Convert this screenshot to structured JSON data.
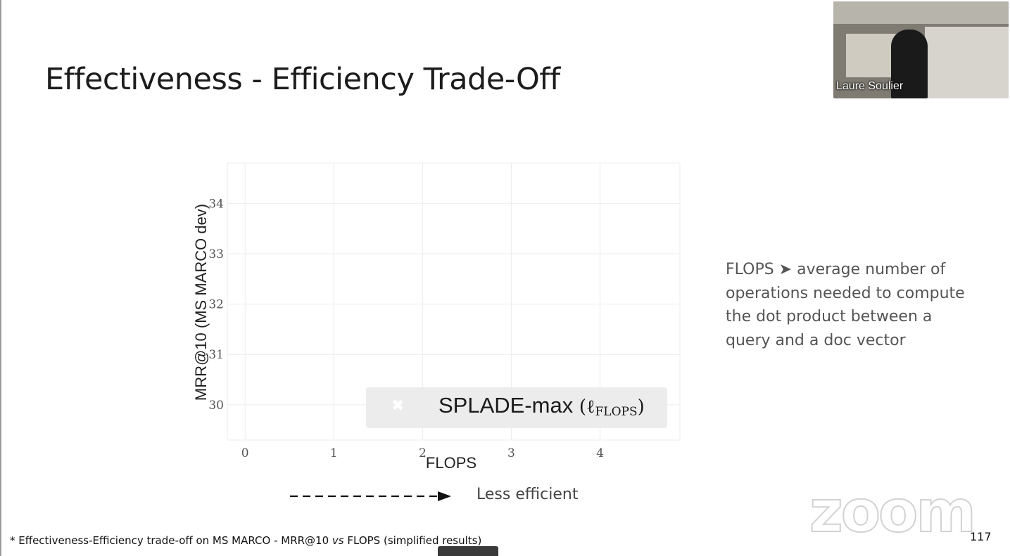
{
  "slide": {
    "title": "Effectiveness - Efficiency Trade-Off",
    "note": "FLOPS ➤ average number of operations needed to compute the dot product between a query and a doc vector",
    "efficiency_label": "Less efficient",
    "footnote": {
      "prefix": "* Effectiveness-Efficiency trade-off on MS MARCO - MRR@10 ",
      "vs": "vs",
      "suffix": " FLOPS (simplified results)"
    },
    "page_number": "117"
  },
  "zoom": {
    "logo_text": "zoom",
    "participant_name": "Laure Soulier"
  },
  "colors": {
    "grid": "#ececec",
    "axis_text": "#555555",
    "legend_bg": "#ececec",
    "arrow": "#111111"
  },
  "chart_data": {
    "type": "scatter",
    "xlabel": "FLOPS",
    "ylabel": "MRR@10 (MS MARCO dev)",
    "xlim": [
      -0.2,
      4.9
    ],
    "ylim": [
      29.3,
      34.8
    ],
    "x_ticks": [
      0,
      1,
      2,
      3,
      4
    ],
    "y_ticks": [
      30,
      31,
      32,
      33,
      34
    ],
    "grid": true,
    "legend_placement": "lower-right",
    "legend_entries": [
      {
        "label": "SPLADE-max",
        "math": "ℓ",
        "math_sub": "FLOPS",
        "marker": "x"
      }
    ],
    "series": [
      {
        "name": "SPLADE-max",
        "points": []
      }
    ]
  }
}
